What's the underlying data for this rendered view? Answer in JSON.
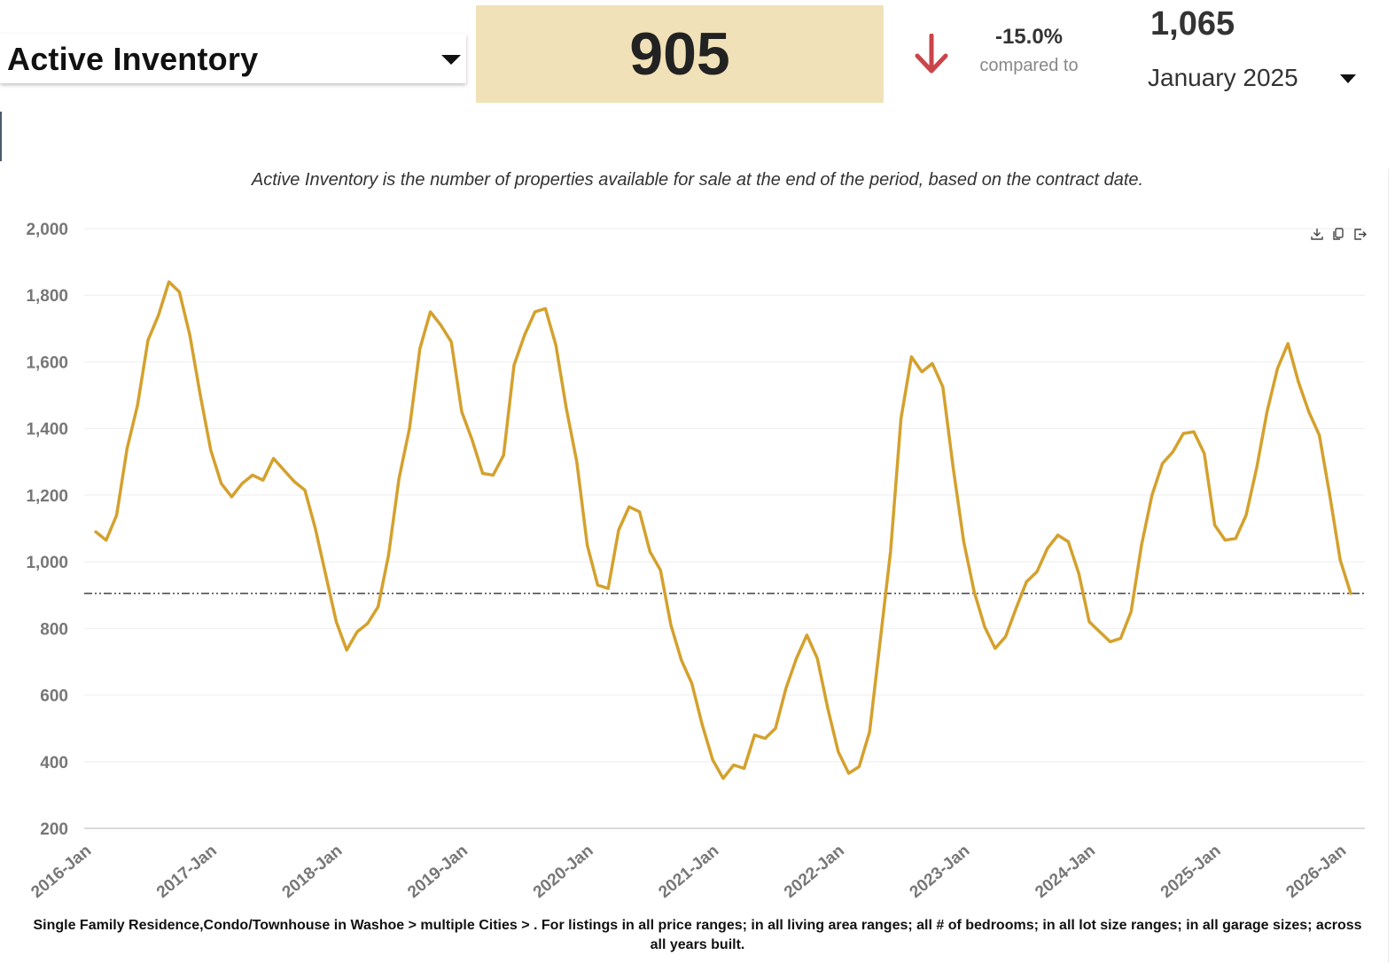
{
  "header": {
    "metric_label": "Active Inventory",
    "current_value": "905",
    "change_pct": "-15.0%",
    "compared_label": "compared to",
    "compare_value": "1,065",
    "compare_period": "January 2025",
    "arrow_color": "#c9454a",
    "value_box_color": "#f1e1b8"
  },
  "description": "Active Inventory is the number of properties available for sale at the end of the period, based on the contract date.",
  "toolbar": {
    "icons": [
      "download-icon",
      "copy-icon",
      "share-icon"
    ]
  },
  "footnote": "Single Family Residence,Condo/Townhouse in Washoe > multiple Cities > . For listings in all price ranges; in all living area ranges; all # of bedrooms; in all lot size ranges; in all garage sizes; across all years built.",
  "chart_data": {
    "type": "line",
    "line_color": "#d4a12d",
    "ylim": [
      200,
      2000
    ],
    "yticks": [
      "2,000",
      "1,800",
      "1,600",
      "1,400",
      "1,200",
      "1,000",
      "800",
      "600",
      "400",
      "200"
    ],
    "ytick_values": [
      2000,
      1800,
      1600,
      1400,
      1200,
      1000,
      800,
      600,
      400,
      200
    ],
    "xticks": [
      "2016-Jan",
      "2017-Jan",
      "2018-Jan",
      "2019-Jan",
      "2020-Jan",
      "2021-Jan",
      "2022-Jan",
      "2023-Jan",
      "2024-Jan",
      "2025-Jan",
      "2026-Jan"
    ],
    "grid": true,
    "reference_line": 905,
    "x": [
      "2016-01",
      "2016-02",
      "2016-03",
      "2016-04",
      "2016-05",
      "2016-06",
      "2016-07",
      "2016-08",
      "2016-09",
      "2016-10",
      "2016-11",
      "2016-12",
      "2017-01",
      "2017-02",
      "2017-03",
      "2017-04",
      "2017-05",
      "2017-06",
      "2017-07",
      "2017-08",
      "2017-09",
      "2017-10",
      "2017-11",
      "2017-12",
      "2018-01",
      "2018-02",
      "2018-03",
      "2018-04",
      "2018-05",
      "2018-06",
      "2018-07",
      "2018-08",
      "2018-09",
      "2018-10",
      "2018-11",
      "2018-12",
      "2019-01",
      "2019-02",
      "2019-03",
      "2019-04",
      "2019-05",
      "2019-06",
      "2019-07",
      "2019-08",
      "2019-09",
      "2019-10",
      "2019-11",
      "2019-12",
      "2020-01",
      "2020-02",
      "2020-03",
      "2020-04",
      "2020-05",
      "2020-06",
      "2020-07",
      "2020-08",
      "2020-09",
      "2020-10",
      "2020-11",
      "2020-12",
      "2021-01",
      "2021-02",
      "2021-03",
      "2021-04",
      "2021-05",
      "2021-06",
      "2021-07",
      "2021-08",
      "2021-09",
      "2021-10",
      "2021-11",
      "2021-12",
      "2022-01",
      "2022-02",
      "2022-03",
      "2022-04",
      "2022-05",
      "2022-06",
      "2022-07",
      "2022-08",
      "2022-09",
      "2022-10",
      "2022-11",
      "2022-12",
      "2023-01",
      "2023-02",
      "2023-03",
      "2023-04",
      "2023-05",
      "2023-06",
      "2023-07",
      "2023-08",
      "2023-09",
      "2023-10",
      "2023-11",
      "2023-12",
      "2024-01",
      "2024-02",
      "2024-03",
      "2024-04",
      "2024-05",
      "2024-06",
      "2024-07",
      "2024-08",
      "2024-09",
      "2024-10",
      "2024-11",
      "2024-12",
      "2025-01",
      "2025-02",
      "2025-03",
      "2025-04",
      "2025-05",
      "2025-06",
      "2025-07",
      "2025-08",
      "2025-09",
      "2025-10",
      "2025-11",
      "2025-12",
      "2026-01"
    ],
    "values": [
      1090,
      1065,
      1140,
      1340,
      1470,
      1665,
      1740,
      1840,
      1810,
      1680,
      1500,
      1335,
      1235,
      1195,
      1235,
      1260,
      1245,
      1310,
      1275,
      1240,
      1215,
      1100,
      960,
      820,
      735,
      790,
      815,
      865,
      1020,
      1250,
      1400,
      1640,
      1750,
      1710,
      1660,
      1450,
      1365,
      1265,
      1260,
      1320,
      1590,
      1680,
      1750,
      1760,
      1650,
      1460,
      1300,
      1050,
      930,
      920,
      1095,
      1165,
      1150,
      1030,
      975,
      810,
      705,
      635,
      510,
      405,
      350,
      390,
      380,
      480,
      470,
      500,
      620,
      710,
      780,
      710,
      560,
      430,
      365,
      385,
      490,
      760,
      1030,
      1430,
      1615,
      1570,
      1595,
      1525,
      1280,
      1060,
      910,
      805,
      740,
      775,
      860,
      940,
      970,
      1040,
      1080,
      1060,
      965,
      820,
      790,
      760,
      770,
      850,
      1050,
      1200,
      1295,
      1330,
      1385,
      1390,
      1325,
      1110,
      1065,
      1070,
      1140,
      1280,
      1450,
      1580,
      1655,
      1540,
      1450,
      1380,
      1200,
      1005,
      905
    ]
  }
}
